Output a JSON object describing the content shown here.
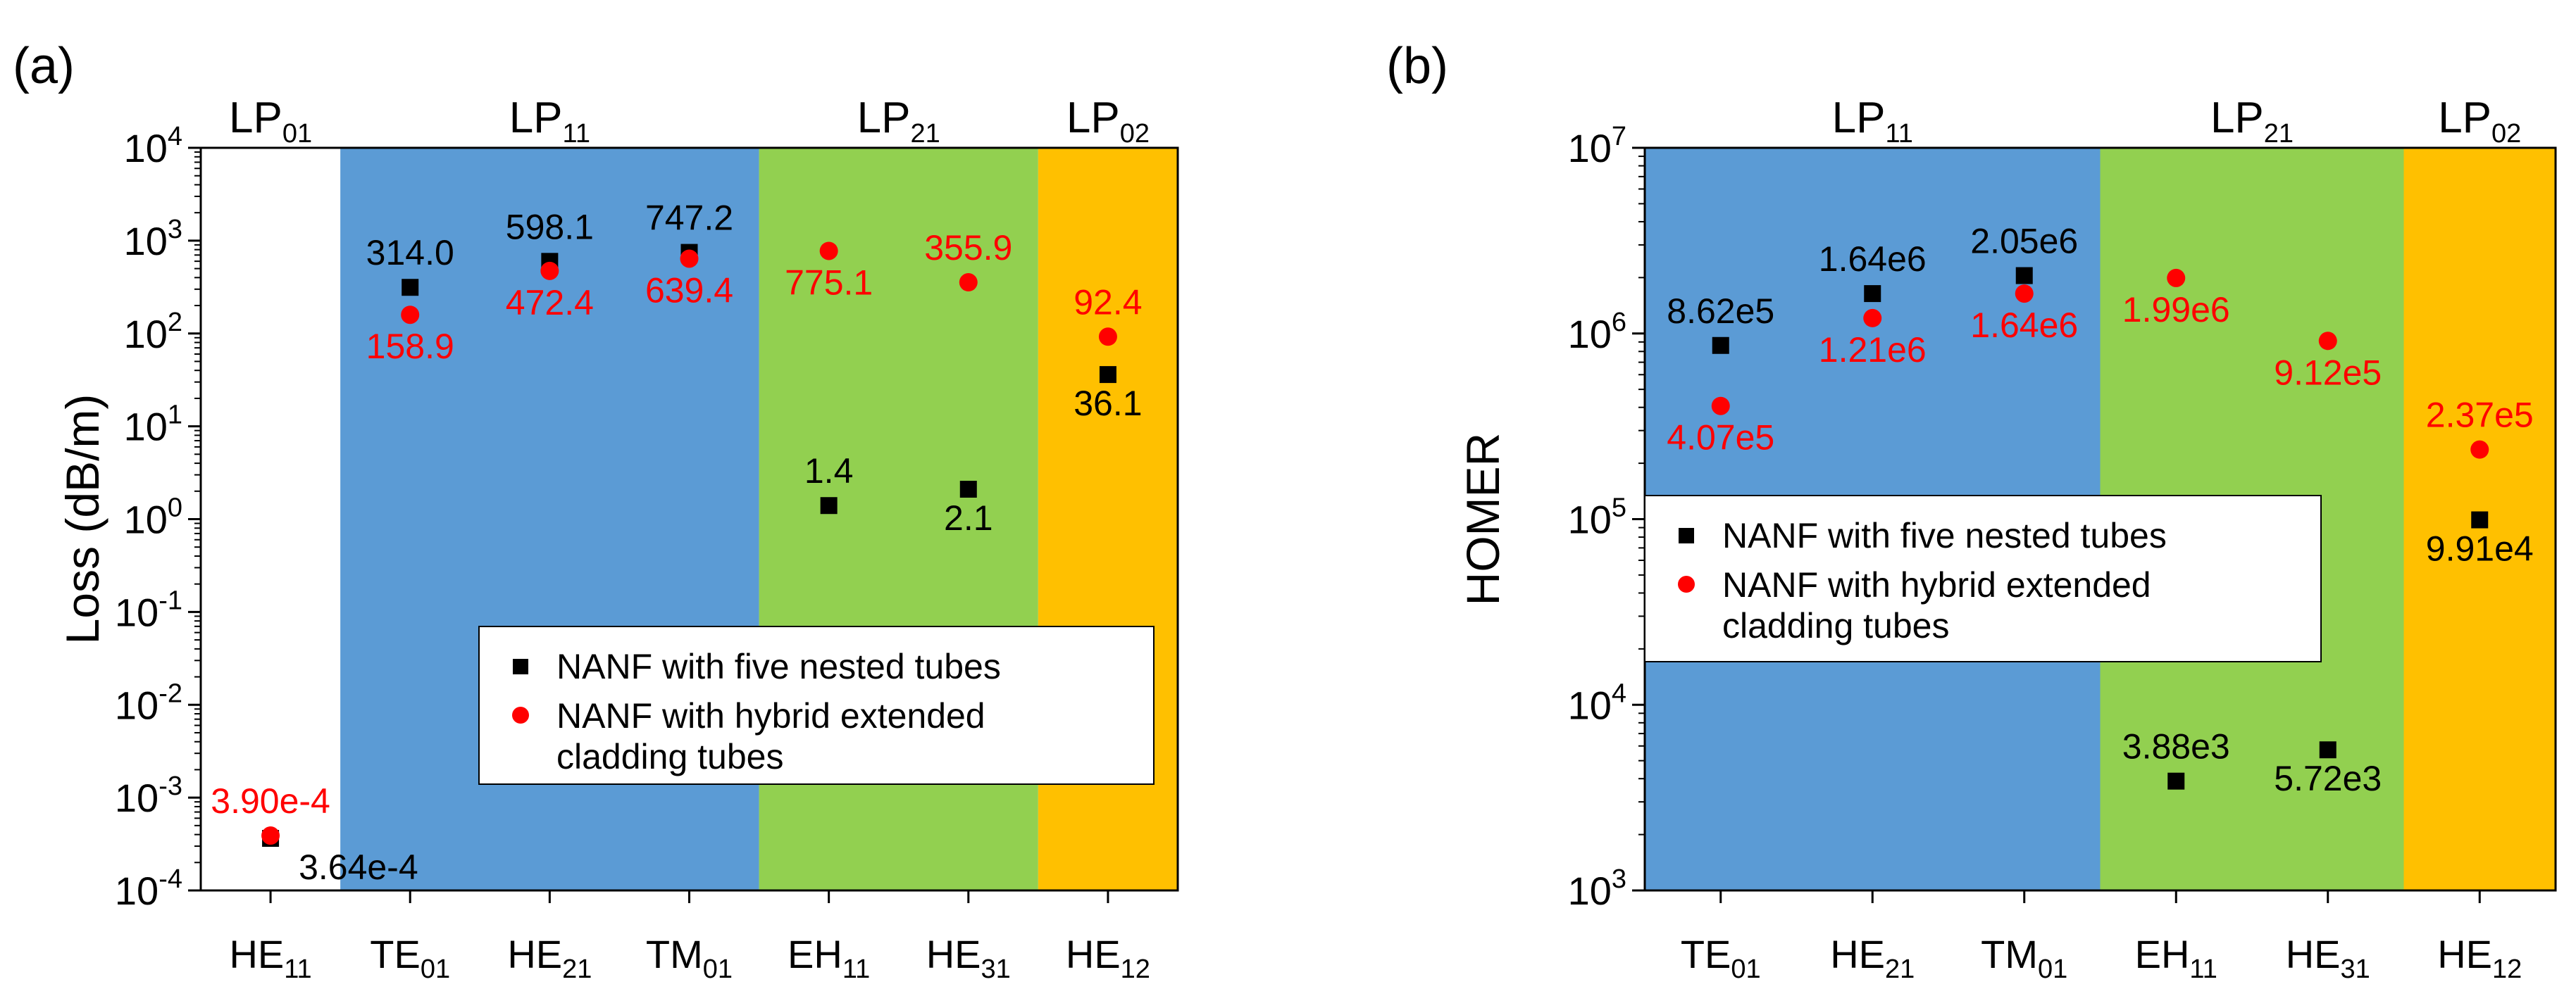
{
  "colors": {
    "blue": "#5b9bd5",
    "green": "#92d050",
    "orange": "#ffc000",
    "s1": "#000000",
    "s2": "#ff0000"
  },
  "legend": {
    "s1": "NANF with five nested tubes",
    "s2_line1": "NANF with hybrid extended",
    "s2_line2": "cladding tubes"
  },
  "chart_data": [
    {
      "panel": "(a)",
      "type": "scatter",
      "ylabel": "Loss (dB/m)",
      "yscale": "log",
      "ylim_exp": [
        -4,
        4
      ],
      "yticks": [
        {
          "base": "10",
          "exp": "4"
        },
        {
          "base": "10",
          "exp": "3"
        },
        {
          "base": "10",
          "exp": "2"
        },
        {
          "base": "10",
          "exp": "1"
        },
        {
          "base": "10",
          "exp": "0"
        },
        {
          "base": "10",
          "exp": "-1"
        },
        {
          "base": "10",
          "exp": "-2"
        },
        {
          "base": "10",
          "exp": "-3"
        },
        {
          "base": "10",
          "exp": "-4"
        }
      ],
      "categories": [
        {
          "main": "HE",
          "sub": "11"
        },
        {
          "main": "TE",
          "sub": "01"
        },
        {
          "main": "HE",
          "sub": "21"
        },
        {
          "main": "TM",
          "sub": "01"
        },
        {
          "main": "EH",
          "sub": "11"
        },
        {
          "main": "HE",
          "sub": "31"
        },
        {
          "main": "HE",
          "sub": "12"
        }
      ],
      "bands": [
        {
          "label": "LP",
          "sub": "01",
          "from": -0.5,
          "to": 0.5,
          "color": "none"
        },
        {
          "label": "LP",
          "sub": "11",
          "from": 0.5,
          "to": 3.5,
          "color": "blue"
        },
        {
          "label": "LP",
          "sub": "21",
          "from": 3.5,
          "to": 5.5,
          "color": "green"
        },
        {
          "label": "LP",
          "sub": "02",
          "from": 5.5,
          "to": 6.5,
          "color": "orange"
        }
      ],
      "series": [
        {
          "name": "NANF with five nested tubes",
          "values": [
            0.000364,
            314.0,
            598.1,
            747.2,
            1.4,
            2.1,
            36.1
          ],
          "labels": [
            "3.64e-4",
            "314.0",
            "598.1",
            "747.2",
            "1.4",
            "2.1",
            "36.1"
          ]
        },
        {
          "name": "NANF with hybrid extended cladding tubes",
          "values": [
            0.00039,
            158.9,
            472.4,
            639.4,
            775.1,
            355.9,
            92.4
          ],
          "labels": [
            "3.90e-4",
            "158.9",
            "472.4",
            "639.4",
            "775.1",
            "355.9",
            "92.4"
          ]
        }
      ],
      "legend_position": "center-right"
    },
    {
      "panel": "(b)",
      "type": "scatter",
      "ylabel": "HOMER",
      "yscale": "log",
      "ylim_exp": [
        3,
        7
      ],
      "yticks": [
        {
          "base": "10",
          "exp": "7"
        },
        {
          "base": "10",
          "exp": "6"
        },
        {
          "base": "10",
          "exp": "5"
        },
        {
          "base": "10",
          "exp": "4"
        },
        {
          "base": "10",
          "exp": "3"
        }
      ],
      "categories": [
        {
          "main": "TE",
          "sub": "01"
        },
        {
          "main": "HE",
          "sub": "21"
        },
        {
          "main": "TM",
          "sub": "01"
        },
        {
          "main": "EH",
          "sub": "11"
        },
        {
          "main": "HE",
          "sub": "31"
        },
        {
          "main": "HE",
          "sub": "12"
        }
      ],
      "bands": [
        {
          "label": "LP",
          "sub": "11",
          "from": -0.5,
          "to": 2.5,
          "color": "blue"
        },
        {
          "label": "LP",
          "sub": "21",
          "from": 2.5,
          "to": 4.5,
          "color": "green"
        },
        {
          "label": "LP",
          "sub": "02",
          "from": 4.5,
          "to": 5.5,
          "color": "orange"
        }
      ],
      "series": [
        {
          "name": "NANF with five nested tubes",
          "values": [
            862000,
            1640000,
            2050000,
            3880,
            5720,
            99100
          ],
          "labels": [
            "8.62e5",
            "1.64e6",
            "2.05e6",
            "3.88e3",
            "5.72e3",
            "9.91e4"
          ]
        },
        {
          "name": "NANF with hybrid extended cladding tubes",
          "values": [
            407000,
            1210000,
            1640000,
            1990000,
            912000,
            237000
          ],
          "labels": [
            "4.07e5",
            "1.21e6",
            "1.64e6",
            "1.99e6",
            "9.12e5",
            "2.37e5"
          ]
        }
      ],
      "legend_position": "center-left"
    }
  ]
}
